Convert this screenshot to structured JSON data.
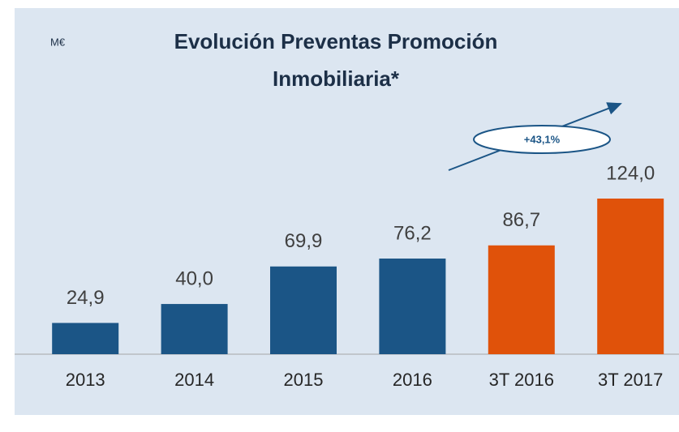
{
  "chart_data": {
    "type": "bar",
    "title": "Evolución Preventas Promoción Inmobiliaria*",
    "unit_label": "M€",
    "categories": [
      "2013",
      "2014",
      "2015",
      "2016",
      "3T 2016",
      "3T 2017"
    ],
    "values": [
      24.9,
      40.0,
      69.9,
      76.2,
      86.7,
      124.0
    ],
    "value_labels": [
      "24,9",
      "40,0",
      "69,9",
      "76,2",
      "86,7",
      "124,0"
    ],
    "colors": [
      "#1b5586",
      "#1b5586",
      "#1b5586",
      "#1b5586",
      "#e0520a",
      "#e0520a"
    ],
    "annotation": "+43,1%"
  }
}
